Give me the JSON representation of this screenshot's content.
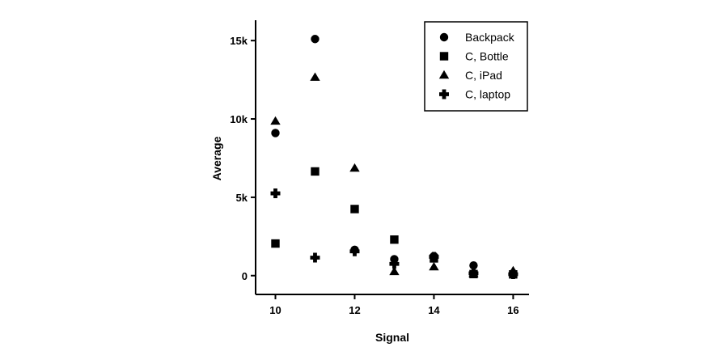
{
  "chart_data": {
    "type": "scatter",
    "xlabel": "Signal",
    "ylabel": "Average",
    "xlim": [
      9.5,
      16.4
    ],
    "ylim": [
      -1200,
      16300
    ],
    "x_ticks": [
      10,
      12,
      14,
      16
    ],
    "x_tick_labels": [
      "10",
      "12",
      "14",
      "16"
    ],
    "y_ticks": [
      0,
      5000,
      10000,
      15000
    ],
    "y_tick_labels": [
      "0",
      "5k",
      "10k",
      "15k"
    ],
    "grid": false,
    "legend_position": "top-right",
    "series": [
      {
        "name": "Backpack",
        "marker": "circle",
        "color": "#000000",
        "points": [
          {
            "x": 10,
            "y": 9100
          },
          {
            "x": 11,
            "y": 15100
          },
          {
            "x": 12,
            "y": 1650
          },
          {
            "x": 13,
            "y": 1050
          },
          {
            "x": 14,
            "y": 1250
          },
          {
            "x": 15,
            "y": 650
          },
          {
            "x": 16,
            "y": 150
          }
        ]
      },
      {
        "name": "C, Bottle",
        "marker": "square",
        "color": "#000000",
        "points": [
          {
            "x": 10,
            "y": 2050
          },
          {
            "x": 11,
            "y": 6650
          },
          {
            "x": 12,
            "y": 4250
          },
          {
            "x": 13,
            "y": 2300
          },
          {
            "x": 14,
            "y": 1100
          },
          {
            "x": 15,
            "y": 100
          },
          {
            "x": 16,
            "y": 80
          }
        ]
      },
      {
        "name": "C, iPad",
        "marker": "triangle",
        "color": "#000000",
        "points": [
          {
            "x": 10,
            "y": 9850
          },
          {
            "x": 11,
            "y": 12650
          },
          {
            "x": 12,
            "y": 6850
          },
          {
            "x": 13,
            "y": 250
          },
          {
            "x": 14,
            "y": 550
          },
          {
            "x": 15,
            "y": 120
          },
          {
            "x": 16,
            "y": 300
          }
        ]
      },
      {
        "name": "C, laptop",
        "marker": "cross",
        "color": "#000000",
        "points": [
          {
            "x": 10,
            "y": 5250
          },
          {
            "x": 11,
            "y": 1150
          },
          {
            "x": 12,
            "y": 1550
          },
          {
            "x": 13,
            "y": 750
          },
          {
            "x": 14,
            "y": 1200
          },
          {
            "x": 15,
            "y": 150
          },
          {
            "x": 16,
            "y": 90
          }
        ]
      }
    ]
  }
}
